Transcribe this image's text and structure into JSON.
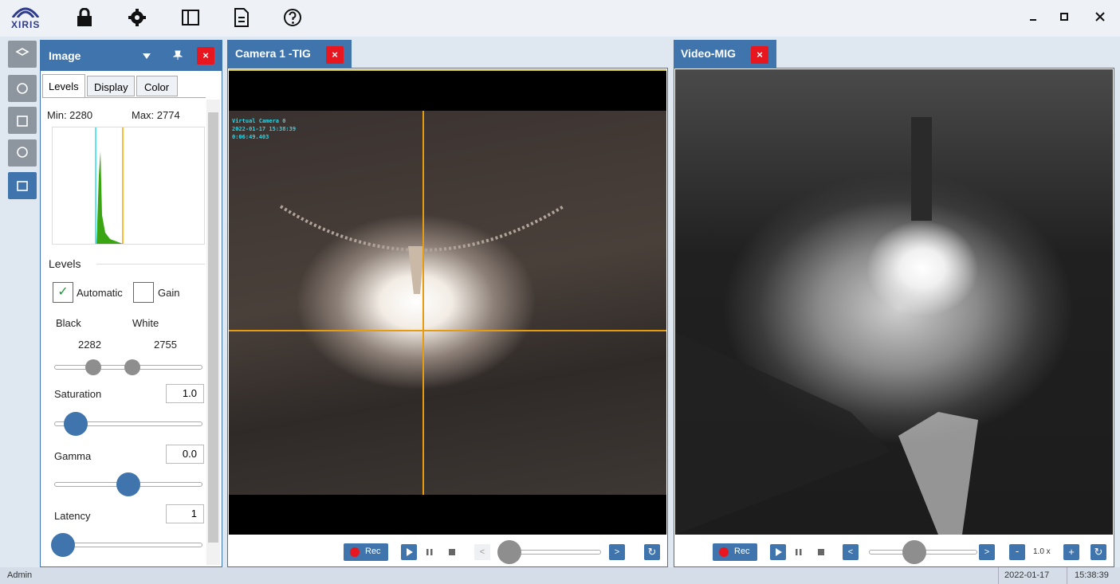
{
  "app": {
    "logo": "XIRIS"
  },
  "panel": {
    "title": "Image",
    "tabs": [
      "Levels",
      "Display",
      "Color"
    ],
    "min": "Min: 2280",
    "max": "Max: 2774",
    "section": "Levels",
    "automatic": "Automatic",
    "gain": "Gain",
    "black": "Black",
    "white": "White",
    "black_value": "2282",
    "white_value": "2755",
    "saturation": "Saturation",
    "saturation_value": "1.0",
    "gamma": "Gamma",
    "gamma_value": "0.0",
    "latency": "Latency",
    "latency_value": "1"
  },
  "views": [
    {
      "title": "Camera 1 -TIG",
      "overlay": [
        "Virtual Camera 0",
        "2022-01-17 15:38:39",
        "0:06:49.403"
      ],
      "rec": "Rec"
    },
    {
      "title": "Video-MIG",
      "rec": "Rec",
      "zoom": "1.0 x"
    }
  ],
  "status": {
    "user": "Admin",
    "date": "2022-01-17",
    "time": "15:38:39"
  }
}
